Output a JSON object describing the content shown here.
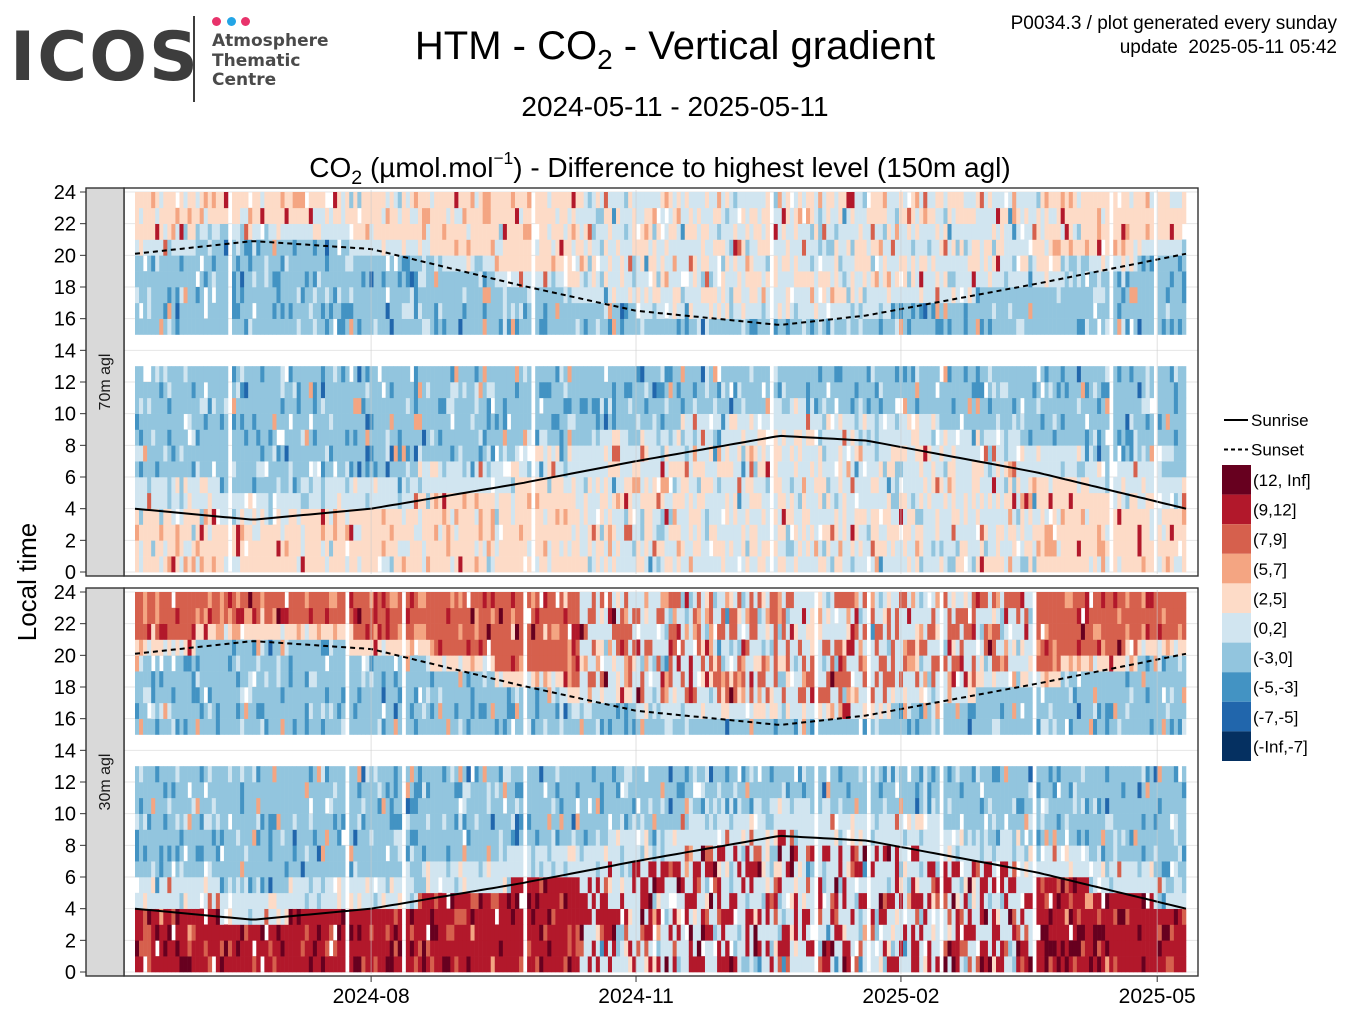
{
  "logo": {
    "mark": "ICOS",
    "lines": [
      "Atmosphere",
      "Thematic",
      "Centre"
    ],
    "dot_colors": [
      "#e8336b",
      "#23a5e6",
      "#e8336b"
    ]
  },
  "header": {
    "title_parts": [
      "HTM - CO",
      "2",
      " - Vertical gradient"
    ],
    "date_range": "2024-05-11 - 2025-05-11",
    "subtitle_parts": [
      "CO",
      "2",
      " (µmol.mol",
      "−1",
      ") - Difference to highest level (150m agl)"
    ],
    "meta_line1": "P0034.3 / plot generated every sunday",
    "meta_line2": "update  2025-05-11 05:42"
  },
  "chart_data": {
    "type": "heatmap",
    "ylabel": "Local time",
    "x_range": [
      "2024-05-11",
      "2025-05-11"
    ],
    "x_ticks": [
      "2024-08",
      "2024-11",
      "2025-02",
      "2025-05"
    ],
    "y_range": [
      0,
      24
    ],
    "y_ticks": [
      0,
      2,
      4,
      6,
      8,
      10,
      12,
      14,
      16,
      18,
      20,
      22,
      24
    ],
    "grid": true,
    "legend_position": "right",
    "panels": [
      {
        "label": "70m agl",
        "day_profile": {
          "night_early": "(2,5]",
          "morning": "(0,2]",
          "day": "(-3,0]",
          "evening": "(0,2]",
          "night_late": "(2,5]"
        }
      },
      {
        "label": "30m agl",
        "day_profile": {
          "night_early": "(9,12]",
          "morning": "(0,2]",
          "day": "(-3,0]",
          "evening": "(2,5]",
          "night_late": "(7,9]"
        }
      }
    ],
    "missing_hours": [
      13,
      14
    ],
    "lines": [
      {
        "name": "Sunrise",
        "style": "solid",
        "points": [
          {
            "date": "2024-05-11",
            "hour": 4.0
          },
          {
            "date": "2024-06-21",
            "hour": 3.3
          },
          {
            "date": "2024-08-01",
            "hour": 4.0
          },
          {
            "date": "2024-09-22",
            "hour": 5.6
          },
          {
            "date": "2024-11-01",
            "hour": 7.0
          },
          {
            "date": "2024-12-21",
            "hour": 8.6
          },
          {
            "date": "2025-01-20",
            "hour": 8.3
          },
          {
            "date": "2025-03-20",
            "hour": 6.3
          },
          {
            "date": "2025-05-11",
            "hour": 4.0
          }
        ]
      },
      {
        "name": "Sunset",
        "style": "dashed",
        "points": [
          {
            "date": "2024-05-11",
            "hour": 20.1
          },
          {
            "date": "2024-06-21",
            "hour": 20.9
          },
          {
            "date": "2024-08-01",
            "hour": 20.4
          },
          {
            "date": "2024-09-22",
            "hour": 18.1
          },
          {
            "date": "2024-11-01",
            "hour": 16.5
          },
          {
            "date": "2024-12-21",
            "hour": 15.6
          },
          {
            "date": "2025-01-20",
            "hour": 16.2
          },
          {
            "date": "2025-03-20",
            "hour": 18.2
          },
          {
            "date": "2025-05-11",
            "hour": 20.1
          }
        ]
      }
    ],
    "legend": [
      {
        "label": "Sunrise",
        "kind": "line-solid"
      },
      {
        "label": "Sunset",
        "kind": "line-dashed"
      },
      {
        "label": "(12, Inf]",
        "color": "#67001f"
      },
      {
        "label": "(9,12]",
        "color": "#b2182b"
      },
      {
        "label": "(7,9]",
        "color": "#d6604d"
      },
      {
        "label": "(5,7]",
        "color": "#f4a582"
      },
      {
        "label": "(2,5]",
        "color": "#fddbc7"
      },
      {
        "label": "(0,2]",
        "color": "#d1e5f0"
      },
      {
        "label": "(-3,0]",
        "color": "#92c5de"
      },
      {
        "label": "(-5,-3]",
        "color": "#4393c3"
      },
      {
        "label": "(-7,-5]",
        "color": "#2166ac"
      },
      {
        "label": "(-Inf,-7]",
        "color": "#053061"
      }
    ]
  }
}
